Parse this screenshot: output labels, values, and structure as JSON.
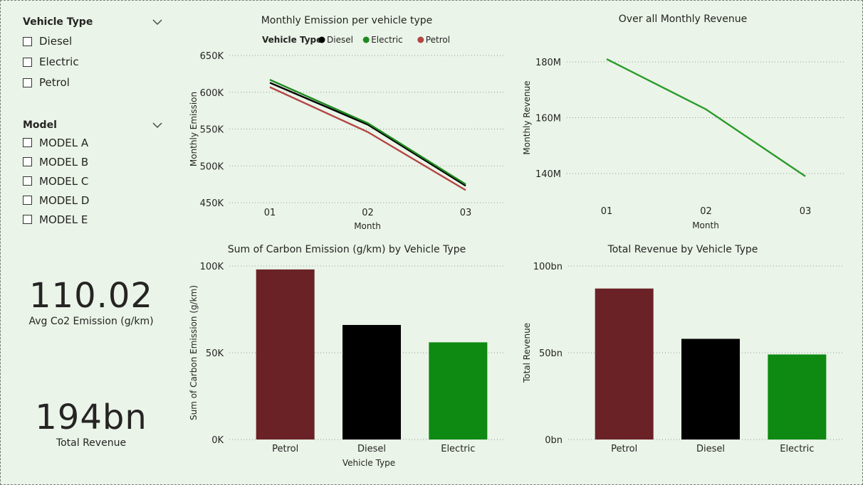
{
  "slicers": [
    {
      "title": "Vehicle Type",
      "options": [
        "Diesel",
        "Electric",
        "Petrol"
      ]
    },
    {
      "title": "Model",
      "options": [
        "MODEL A",
        "MODEL B",
        "MODEL C",
        "MODEL D",
        "MODEL E"
      ]
    }
  ],
  "cards": [
    {
      "value": "110.02",
      "label": "Avg Co2 Emission (g/km)"
    },
    {
      "value": "194bn",
      "label": "Total Revenue"
    }
  ],
  "colors": {
    "diesel": "#000000",
    "electric": "#1f8a1f",
    "petrol": "#b34545",
    "petrol_bar": "#6b2227",
    "electric_bar": "#0e8a12",
    "revenue_line": "#2a9a2a",
    "grid": "#9a9a9a"
  },
  "chart_data": [
    {
      "type": "line",
      "title": "Monthly Emission per vehicle type",
      "legend_title": "Vehicle Type",
      "legend_position": "top",
      "xlabel": "Month",
      "ylabel": "Monthly Emission",
      "categories": [
        "01",
        "02",
        "03"
      ],
      "yticks": [
        "450K",
        "500K",
        "550K",
        "600K",
        "650K"
      ],
      "ylim": [
        450000,
        650000
      ],
      "series": [
        {
          "name": "Diesel",
          "color": "#000000",
          "values": [
            613000,
            556000,
            473000
          ]
        },
        {
          "name": "Electric",
          "color": "#1f8a1f",
          "values": [
            617000,
            558000,
            475000
          ]
        },
        {
          "name": "Petrol",
          "color": "#b34545",
          "values": [
            607000,
            546000,
            467000
          ]
        }
      ],
      "grid": true
    },
    {
      "type": "line",
      "title": "Over all Monthly Revenue",
      "xlabel": "Month",
      "ylabel": "Monthly Revenue",
      "categories": [
        "01",
        "02",
        "03"
      ],
      "yticks": [
        "140M",
        "160M",
        "180M"
      ],
      "ylim": [
        140000000,
        180000000
      ],
      "series": [
        {
          "color": "#2a9a2a",
          "values": [
            181000000,
            163000000,
            139000000
          ]
        }
      ],
      "grid": true
    },
    {
      "type": "bar",
      "title": "Sum of Carbon Emission (g/km) by Vehicle Type",
      "xlabel": "Vehicle Type",
      "ylabel": "Sum of Carbon Emission (g/km)",
      "categories": [
        "Petrol",
        "Diesel",
        "Electric"
      ],
      "colors": [
        "#6b2227",
        "#000000",
        "#0e8a12"
      ],
      "values": [
        98000,
        66000,
        56000
      ],
      "yticks": [
        "0K",
        "50K",
        "100K"
      ],
      "ylim": [
        0,
        100000
      ],
      "grid": true
    },
    {
      "type": "bar",
      "title": "Total Revenue by Vehicle Type",
      "ylabel": "Total Revenue",
      "categories": [
        "Petrol",
        "Diesel",
        "Electric"
      ],
      "colors": [
        "#6b2227",
        "#000000",
        "#0e8a12"
      ],
      "values": [
        87000000000,
        58000000000,
        49000000000
      ],
      "yticks": [
        "0bn",
        "50bn",
        "100bn"
      ],
      "ylim": [
        0,
        100000000000
      ],
      "grid": true
    }
  ]
}
